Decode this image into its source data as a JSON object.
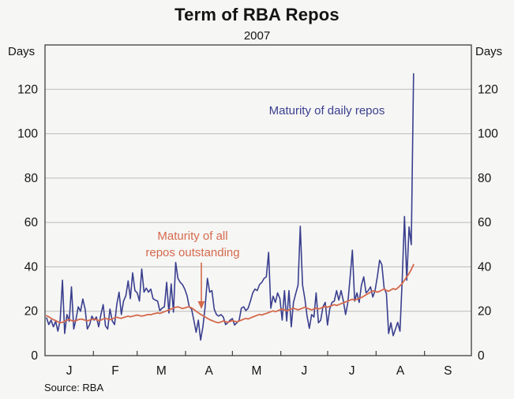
{
  "header": {
    "title": "Term of RBA Repos",
    "subtitle": "2007"
  },
  "axes": {
    "left_unit": "Days",
    "right_unit": "Days",
    "yticks": [
      0,
      20,
      40,
      60,
      80,
      100,
      120
    ],
    "month_labels": [
      "J",
      "F",
      "M",
      "A",
      "M",
      "J",
      "J",
      "A",
      "S"
    ]
  },
  "annotations": {
    "daily_label": "Maturity of daily repos",
    "outstanding_label_line1": "Maturity of all",
    "outstanding_label_line2": "repos outstanding"
  },
  "footer": {
    "source": "Source: RBA"
  },
  "colors": {
    "daily_line": "#3A3F8E",
    "outstanding_line": "#D5694C",
    "grid": "#BBBBBB",
    "axis": "#3F3F3F",
    "background": "#F6F6F5",
    "text": "#141414"
  },
  "chart_data": {
    "type": "line",
    "title": "Term of RBA Repos",
    "subtitle": "2007",
    "xlabel": "",
    "ylabel": "Days",
    "ylim": [
      0,
      140
    ],
    "yticks": [
      0,
      20,
      40,
      60,
      80,
      100,
      120
    ],
    "grid": true,
    "legend_position": "inline-annotations",
    "x_domain_months": [
      "Jan",
      "Feb",
      "Mar",
      "Apr",
      "May",
      "Jun",
      "Jul",
      "Aug",
      "Sep"
    ],
    "x_month_day_counts": [
      31,
      28,
      31,
      30,
      31,
      30,
      31,
      31,
      30
    ],
    "x_start_day_of_year": 2,
    "x_day_step": 1.4506,
    "series": [
      {
        "name": "Maturity of daily repos",
        "color": "#3A3F8E",
        "values": [
          17,
          14,
          16,
          13,
          15.5,
          11,
          16,
          34,
          10,
          18.5,
          15.5,
          31,
          12,
          16.5,
          22,
          20,
          25.5,
          21,
          12,
          14,
          17.8,
          16,
          17.4,
          13,
          18.5,
          23,
          13.4,
          12,
          21,
          15.6,
          14,
          23,
          28.6,
          18.5,
          24.6,
          27,
          33.7,
          25.7,
          37.3,
          29.3,
          28.3,
          24.6,
          39,
          28.6,
          30.4,
          28.6,
          30,
          25.7,
          25,
          24.6,
          20.3,
          21.4,
          22,
          33,
          19.2,
          32.3,
          19.6,
          42,
          34.8,
          33,
          32,
          30,
          27,
          22,
          21,
          16,
          10.5,
          16,
          7,
          13,
          22,
          34.8,
          28.6,
          29.3,
          21,
          18.5,
          17.8,
          18.5,
          17.4,
          14,
          14.8,
          16,
          16.7,
          13.8,
          14.8,
          16,
          21.4,
          22,
          20.3,
          21.4,
          24.6,
          28.3,
          30,
          29.3,
          32,
          33,
          34.8,
          35.5,
          46.5,
          21.4,
          26.8,
          24,
          28.3,
          25.7,
          16,
          29.3,
          15.6,
          29.3,
          13,
          24,
          28,
          31.8,
          58.3,
          31.8,
          25.7,
          17.8,
          12.3,
          18.5,
          17.4,
          28.3,
          14.8,
          16,
          22,
          24,
          13.8,
          21,
          24,
          24.6,
          29.3,
          25,
          29.3,
          24.6,
          18.5,
          24,
          35.5,
          47.5,
          24.6,
          28.3,
          24,
          31.8,
          35.5,
          28.3,
          29.3,
          31,
          26.4,
          29.3,
          35.5,
          43,
          41,
          30.5,
          28,
          10,
          14.8,
          9,
          12,
          15,
          11,
          35,
          62.7,
          34,
          58,
          50,
          127
        ]
      },
      {
        "name": "Maturity of all repos outstanding",
        "color": "#D5694C",
        "values": [
          18,
          17.5,
          16.8,
          16.2,
          15.8,
          15.2,
          14.8,
          15,
          15.5,
          16,
          16.3,
          15.8,
          15.5,
          15.8,
          16.2,
          16.5,
          16.3,
          16,
          15.7,
          16,
          16.3,
          16.5,
          16.2,
          15.8,
          16,
          16.5,
          16.8,
          16.5,
          16.2,
          16.6,
          17,
          17.3,
          17,
          16.8,
          17.2,
          17.5,
          17.8,
          17.5,
          17.8,
          18,
          18.3,
          18,
          17.8,
          18,
          18.3,
          18.6,
          18.4,
          18.8,
          19,
          19.3,
          19,
          19.4,
          19.8,
          20.2,
          20.6,
          21,
          21.4,
          21.8,
          22,
          21.6,
          21.2,
          21.5,
          21.8,
          22,
          21.5,
          20.8,
          20,
          19.3,
          18.6,
          18,
          17.4,
          16.8,
          16.2,
          15.8,
          15.4,
          15,
          14.8,
          15.2,
          15.6,
          15.3,
          15,
          15.4,
          15.8,
          15.5,
          15.2,
          15.6,
          16,
          16.4,
          16.8,
          16.5,
          17,
          17.4,
          17.8,
          18.2,
          18.6,
          18.3,
          18.7,
          19,
          19.4,
          19.8,
          20.2,
          19.8,
          20.2,
          20.6,
          21,
          20.6,
          20.2,
          20.6,
          21,
          21.4,
          21,
          20.6,
          21,
          21.4,
          21.8,
          21.4,
          21,
          20.6,
          21,
          21.4,
          21,
          21.4,
          21.8,
          22.2,
          21.8,
          22.2,
          22.6,
          23,
          22.6,
          23,
          23.4,
          23.8,
          24.2,
          24.6,
          25,
          25.4,
          25,
          25.4,
          25.8,
          26.2,
          26.8,
          27.4,
          28,
          28.6,
          29.2,
          29,
          28.6,
          29,
          29.5,
          30,
          29.4,
          29,
          29.6,
          30.2,
          29.8,
          30.5,
          31.5,
          32.5,
          34,
          35.5,
          37,
          38.8,
          41
        ]
      }
    ]
  }
}
